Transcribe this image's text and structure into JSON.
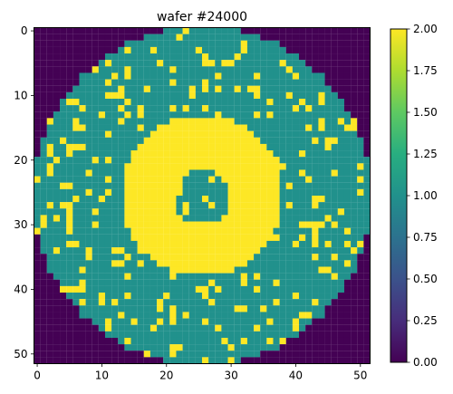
{
  "chart_data": {
    "type": "heatmap",
    "title": "wafer #24000",
    "xlabel": "",
    "ylabel": "",
    "grid_size": 52,
    "x_ticks": [
      0,
      10,
      20,
      30,
      40,
      50
    ],
    "y_ticks": [
      0,
      10,
      20,
      30,
      40,
      50
    ],
    "xlim": [
      -0.5,
      51.5
    ],
    "ylim": [
      51.5,
      -0.5
    ],
    "colorbar": {
      "colormap": "viridis",
      "vmin": 0.0,
      "vmax": 2.0,
      "ticks": [
        "0.00",
        "0.25",
        "0.50",
        "0.75",
        "1.00",
        "1.25",
        "1.50",
        "1.75",
        "2.00"
      ]
    },
    "legend": "none",
    "grid": false,
    "wafer": {
      "center_col": 25.5,
      "center_row": 25.5,
      "radius_cells": 26.2,
      "background_value": 0,
      "die_value": 1,
      "defect_value": 2,
      "defect_ring_inner_radius": 4.5,
      "defect_ring_outer_radius": 12.5,
      "random_defect_rate": 0.14,
      "seed": 24000
    },
    "colors": {
      "background": "#440154",
      "die": "#21918c",
      "defect": "#fde725"
    }
  }
}
